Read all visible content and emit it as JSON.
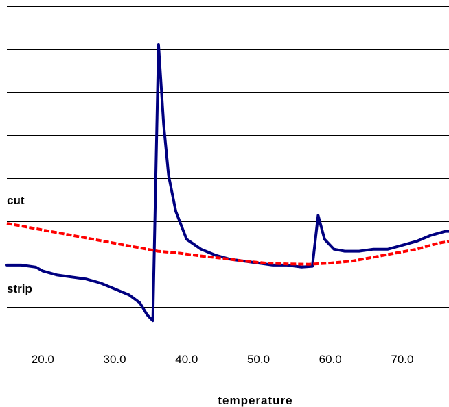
{
  "chart_data": {
    "type": "line",
    "xlabel": "temperature",
    "x_ticks": [
      "20.0",
      "30.0",
      "40.0",
      "50.0",
      "60.0",
      "70.0"
    ],
    "x_tick_values": [
      20,
      30,
      40,
      50,
      60,
      70
    ],
    "xlim": [
      15,
      76.5
    ],
    "gridlines": 8,
    "grid": true,
    "series": [
      {
        "name": "strip",
        "color": "#000080",
        "style": "solid",
        "points": [
          [
            15,
            -0.05
          ],
          [
            17,
            -0.05
          ],
          [
            19,
            -0.1
          ],
          [
            20,
            -0.2
          ],
          [
            22,
            -0.3
          ],
          [
            24,
            -0.35
          ],
          [
            26,
            -0.4
          ],
          [
            28,
            -0.5
          ],
          [
            30,
            -0.65
          ],
          [
            32,
            -0.8
          ],
          [
            33.5,
            -1.0
          ],
          [
            34.5,
            -1.3
          ],
          [
            35.3,
            -1.45
          ],
          [
            36.1,
            5.5
          ],
          [
            36.8,
            3.5
          ],
          [
            37.5,
            2.2
          ],
          [
            38.5,
            1.3
          ],
          [
            40,
            0.6
          ],
          [
            42,
            0.35
          ],
          [
            44,
            0.2
          ],
          [
            46,
            0.1
          ],
          [
            48,
            0.05
          ],
          [
            50,
            0.0
          ],
          [
            52,
            -0.05
          ],
          [
            54,
            -0.05
          ],
          [
            56,
            -0.1
          ],
          [
            57.5,
            -0.08
          ],
          [
            58.3,
            1.2
          ],
          [
            59.2,
            0.6
          ],
          [
            60.5,
            0.35
          ],
          [
            62,
            0.3
          ],
          [
            64,
            0.3
          ],
          [
            66,
            0.35
          ],
          [
            68,
            0.35
          ],
          [
            70,
            0.45
          ],
          [
            72,
            0.55
          ],
          [
            74,
            0.7
          ],
          [
            76,
            0.8
          ],
          [
            76.5,
            0.8
          ]
        ]
      },
      {
        "name": "cut",
        "color": "#ff0000",
        "style": "dashed",
        "points": [
          [
            15,
            1.0
          ],
          [
            18,
            0.9
          ],
          [
            21,
            0.8
          ],
          [
            24,
            0.7
          ],
          [
            27,
            0.6
          ],
          [
            30,
            0.5
          ],
          [
            33,
            0.4
          ],
          [
            36,
            0.3
          ],
          [
            39,
            0.25
          ],
          [
            42,
            0.18
          ],
          [
            45,
            0.12
          ],
          [
            48,
            0.05
          ],
          [
            51,
            0.0
          ],
          [
            54,
            -0.02
          ],
          [
            57,
            -0.03
          ],
          [
            60,
            0.0
          ],
          [
            63,
            0.05
          ],
          [
            66,
            0.15
          ],
          [
            69,
            0.25
          ],
          [
            72,
            0.35
          ],
          [
            75,
            0.5
          ],
          [
            76.5,
            0.55
          ]
        ]
      }
    ]
  }
}
